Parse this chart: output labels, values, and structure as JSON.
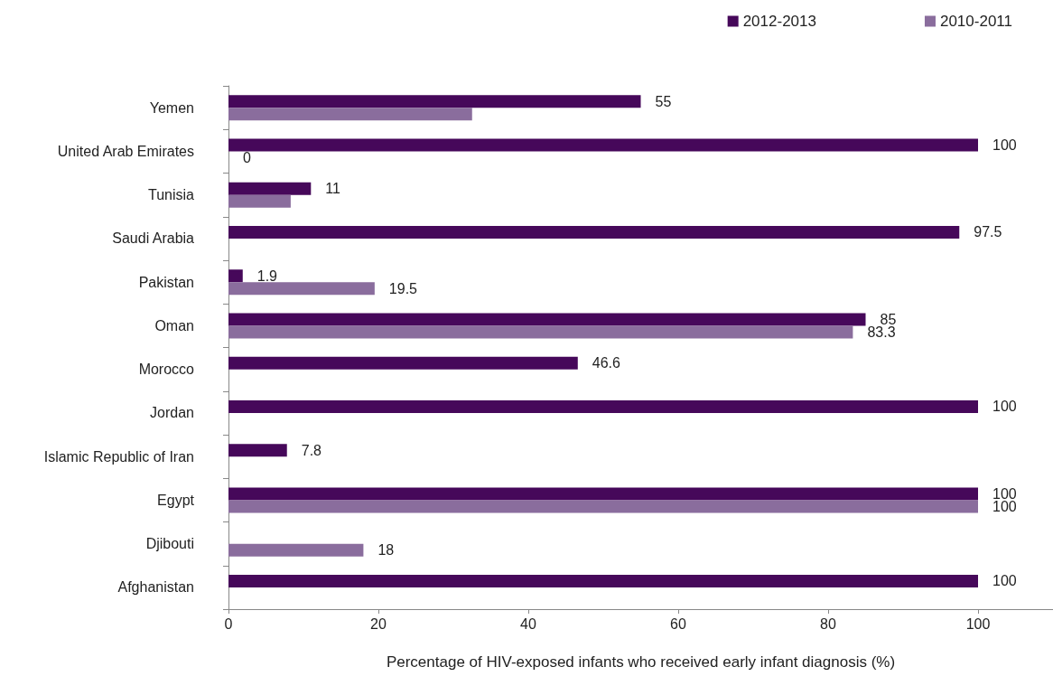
{
  "chart_data": {
    "type": "bar",
    "orientation": "horizontal",
    "xlabel": "Percentage of HIV-exposed infants who received early infant diagnosis (%)",
    "categories": [
      "Yemen",
      "United Arab Emirates",
      "Tunisia",
      "Saudi Arabia",
      "Pakistan",
      "Oman",
      "Morocco",
      "Jordan",
      "Islamic Republic of Iran",
      "Egypt",
      "Djibouti",
      "Afghanistan"
    ],
    "series": [
      {
        "name": "2012-2013",
        "color": "#46085a",
        "values": [
          55,
          100,
          11,
          97.5,
          1.9,
          85,
          46.6,
          100,
          7.8,
          100,
          null,
          100
        ],
        "value_labels": [
          "55",
          "100",
          "11",
          "97.5",
          "1.9",
          "85",
          "46.6",
          "100",
          "7.8",
          "100",
          null,
          "100"
        ]
      },
      {
        "name": "2010-2011",
        "color": "#8a6d9d",
        "values": [
          32.5,
          0,
          8.3,
          null,
          19.5,
          83.3,
          null,
          null,
          null,
          100,
          18,
          null
        ],
        "value_labels": [
          null,
          "0",
          null,
          null,
          "19.5",
          "83.3",
          null,
          null,
          null,
          "100",
          "18",
          null
        ]
      }
    ],
    "xlim": [
      0,
      110
    ],
    "xticks": [
      0,
      20,
      40,
      60,
      80,
      100
    ],
    "grid": false,
    "legend": "top right"
  }
}
